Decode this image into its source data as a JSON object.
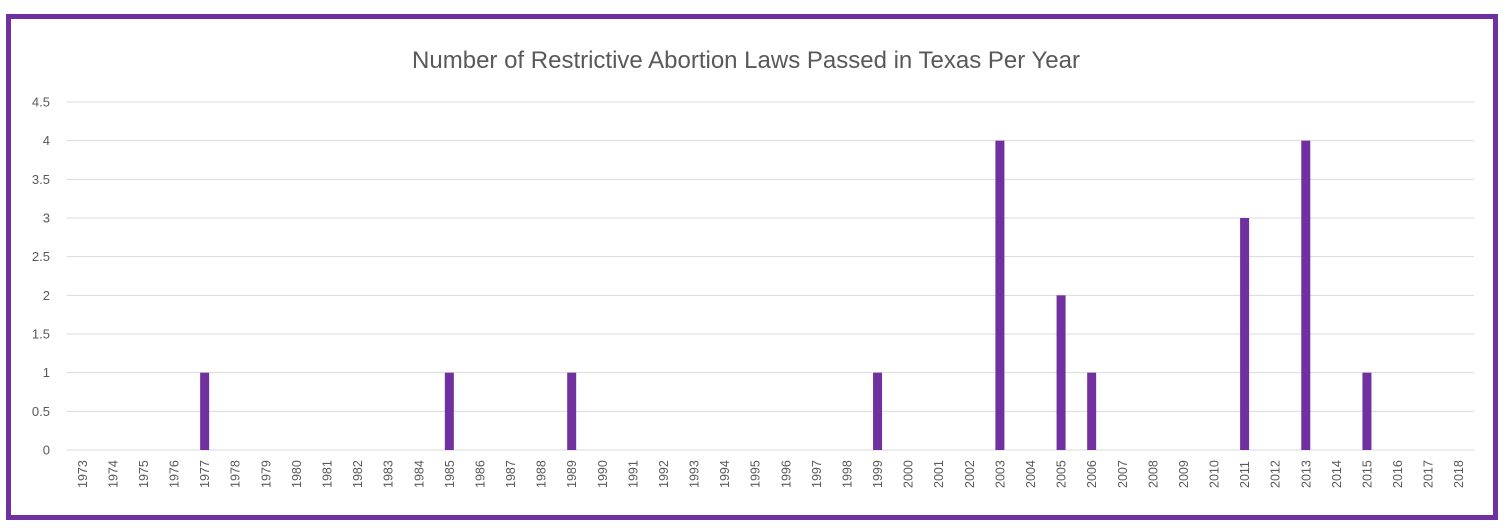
{
  "chart_data": {
    "type": "bar",
    "title": "Number of Restrictive Abortion Laws Passed in Texas Per Year",
    "xlabel": "",
    "ylabel": "",
    "ylim": [
      0,
      4.5
    ],
    "yticks": [
      "0",
      "0.5",
      "1",
      "1.5",
      "2",
      "2.5",
      "3",
      "3.5",
      "4",
      "4.5"
    ],
    "grid": true,
    "bar_color": "#7030a0",
    "categories": [
      "1973",
      "1974",
      "1975",
      "1976",
      "1977",
      "1978",
      "1979",
      "1980",
      "1981",
      "1982",
      "1983",
      "1984",
      "1985",
      "1986",
      "1987",
      "1988",
      "1989",
      "1990",
      "1991",
      "1992",
      "1993",
      "1994",
      "1995",
      "1996",
      "1997",
      "1998",
      "1999",
      "2000",
      "2001",
      "2002",
      "2003",
      "2004",
      "2005",
      "2006",
      "2007",
      "2008",
      "2009",
      "2010",
      "2011",
      "2012",
      "2013",
      "2014",
      "2015",
      "2016",
      "2017",
      "2018"
    ],
    "values": [
      0,
      0,
      0,
      0,
      1,
      0,
      0,
      0,
      0,
      0,
      0,
      0,
      1,
      0,
      0,
      0,
      1,
      0,
      0,
      0,
      0,
      0,
      0,
      0,
      0,
      0,
      1,
      0,
      0,
      0,
      4,
      0,
      2,
      1,
      0,
      0,
      0,
      0,
      3,
      0,
      4,
      0,
      1,
      0,
      0,
      0
    ]
  }
}
